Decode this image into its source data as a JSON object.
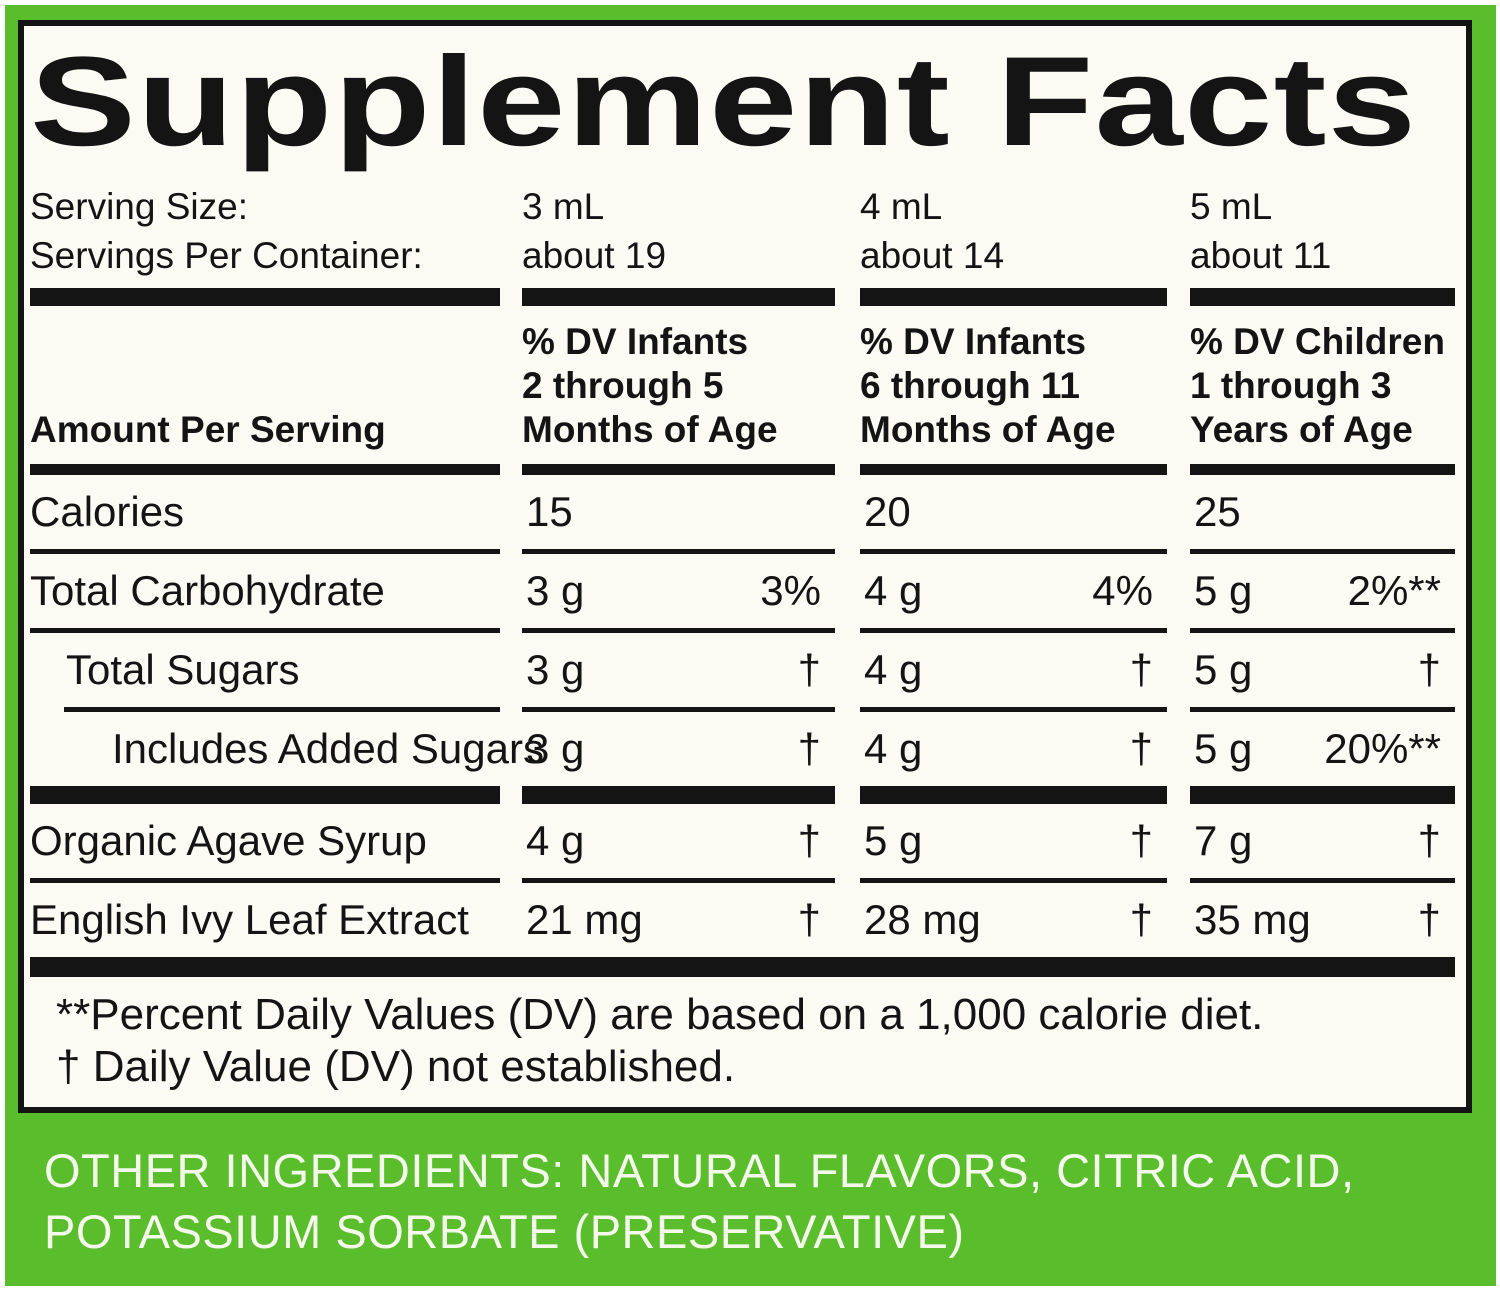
{
  "label": {
    "title": "Supplement Facts",
    "serving": {
      "size_label": "Serving Size:",
      "per_container_label": "Servings Per Container:",
      "columns": [
        {
          "size": "3 mL",
          "servings": "about 19",
          "dv_line1": "% DV Infants",
          "dv_line2": "2 through 5",
          "dv_line3": "Months of Age"
        },
        {
          "size": "4 mL",
          "servings": "about 14",
          "dv_line1": "% DV Infants",
          "dv_line2": "6 through 11",
          "dv_line3": "Months of Age"
        },
        {
          "size": "5 mL",
          "servings": "about 11",
          "dv_line1": "% DV Children",
          "dv_line2": "1 through 3",
          "dv_line3": "Years of Age"
        }
      ]
    },
    "amount_header": "Amount Per Serving",
    "rows": [
      {
        "name": "Calories",
        "values": [
          {
            "amt": "15",
            "dv": ""
          },
          {
            "amt": "20",
            "dv": ""
          },
          {
            "amt": "25",
            "dv": ""
          }
        ]
      },
      {
        "name": "Total Carbohydrate",
        "values": [
          {
            "amt": "3 g",
            "dv": "3%"
          },
          {
            "amt": "4 g",
            "dv": "4%"
          },
          {
            "amt": "5 g",
            "dv": "2%**"
          }
        ]
      },
      {
        "name": "Total Sugars",
        "values": [
          {
            "amt": "3 g",
            "dv": "†"
          },
          {
            "amt": "4 g",
            "dv": "†"
          },
          {
            "amt": "5 g",
            "dv": "†"
          }
        ]
      },
      {
        "name": "Includes Added Sugars",
        "values": [
          {
            "amt": "3 g",
            "dv": "†"
          },
          {
            "amt": "4 g",
            "dv": "†"
          },
          {
            "amt": "5 g",
            "dv": "20%**"
          }
        ]
      },
      {
        "name": "Organic Agave Syrup",
        "values": [
          {
            "amt": "4 g",
            "dv": "†"
          },
          {
            "amt": "5 g",
            "dv": "†"
          },
          {
            "amt": "7 g",
            "dv": "†"
          }
        ]
      },
      {
        "name": "English Ivy Leaf Extract",
        "values": [
          {
            "amt": "21 mg",
            "dv": "†"
          },
          {
            "amt": "28 mg",
            "dv": "†"
          },
          {
            "amt": "35 mg",
            "dv": "†"
          }
        ]
      }
    ],
    "footnotes": {
      "dv_basis": "**Percent Daily Values (DV) are based on a 1,000 calorie diet.",
      "not_established": "† Daily Value (DV) not established."
    },
    "other_ingredients": "OTHER INGREDIENTS: NATURAL FLAVORS, CITRIC ACID, POTASSIUM SORBATE (PRESERVATIVE)",
    "colors": {
      "background_green": "#5abd2c",
      "panel_white": "#fbfbf4",
      "text_black": "#141414",
      "other_text_white": "#f4f9ec"
    }
  }
}
